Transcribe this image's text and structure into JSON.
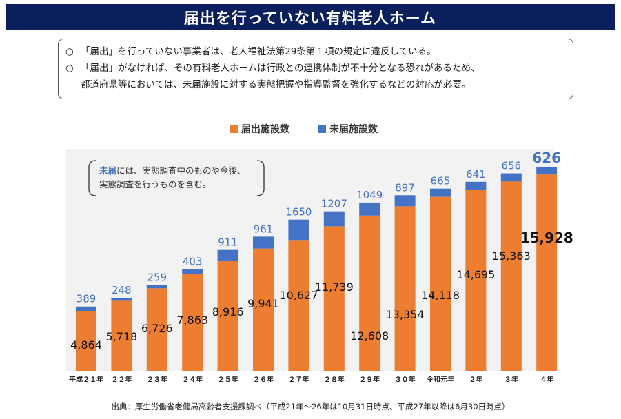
{
  "page": {
    "title": "届出を行っていない有料老人ホーム",
    "notes": [
      {
        "mark": "○",
        "text": "「届出」を行っていない事業者は、老人福祉法第29条第１項の規定に違反している。"
      },
      {
        "mark": "○",
        "text": "「届出」がなければ、その有料老人ホームは行政との連携体制が不十分となる恐れがあるため、"
      },
      {
        "mark": "",
        "text": "都道府県等においては、未届施設に対する実態把握や指導監督を強化するなどの対応が必要。"
      }
    ],
    "source": "出典：厚生労働省老健局高齢者支援課調べ（平成21年～26年は10月31日時点、平成27年以降は6月30日時点）"
  },
  "chart_data": {
    "type": "bar",
    "stacked": true,
    "categories": [
      "平成２１年",
      "２２年",
      "２３年",
      "２４年",
      "２５年",
      "２６年",
      "２７年",
      "２８年",
      "２９年",
      "３０年",
      "令和元年",
      "２年",
      "３年",
      "４年"
    ],
    "series": [
      {
        "name": "届出施設数",
        "color": "#ed7d31",
        "values": [
          4864,
          5718,
          6726,
          7863,
          8916,
          9941,
          10627,
          11739,
          12608,
          13354,
          14118,
          14695,
          15363,
          15928
        ]
      },
      {
        "name": "未届施設数",
        "color": "#4472c4",
        "values": [
          389,
          248,
          259,
          403,
          911,
          961,
          1650,
          1207,
          1049,
          897,
          665,
          641,
          656,
          626
        ]
      }
    ],
    "ylim": [
      0,
      18000
    ],
    "grid": false,
    "legend_position": "top-center",
    "data_labels": {
      "registered": [
        "4,864",
        "5,718",
        "6,726",
        "7,863",
        "8,916",
        "9,941",
        "10,627",
        "11,739",
        "12,608",
        "13,354",
        "14,118",
        "14,695",
        "15,363",
        "15,928"
      ],
      "unregistered": [
        "389",
        "248",
        "259",
        "403",
        "911",
        "961",
        "1650",
        "1207",
        "1049",
        "897",
        "665",
        "641",
        "656",
        "626"
      ]
    },
    "annotation": {
      "highlight": "未届",
      "text_line1": "には、実態調査中のものや今後、",
      "text_line2": "実態調査を行うものを含む。"
    }
  }
}
